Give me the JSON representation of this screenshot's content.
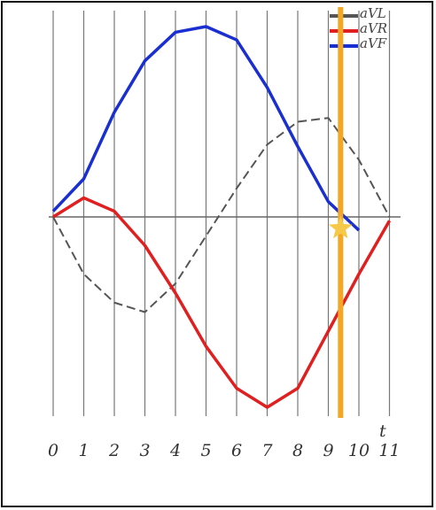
{
  "chart_data": {
    "type": "line",
    "x": [
      0,
      1,
      2,
      3,
      4,
      5,
      6,
      7,
      8,
      9,
      10,
      11
    ],
    "x_label": "t",
    "xlim": [
      0,
      11
    ],
    "xticks": [
      0,
      1,
      2,
      3,
      4,
      5,
      6,
      7,
      8,
      9,
      10,
      11
    ],
    "ylim": [
      -1.1,
      1.1
    ],
    "grid": true,
    "legend": "top-right",
    "series": [
      {
        "name": "aVL",
        "color": "#555555",
        "values": [
          0,
          -0.3,
          -0.45,
          -0.5,
          -0.35,
          -0.1,
          0.15,
          0.38,
          0.5,
          0.52,
          0.3,
          0
        ]
      },
      {
        "name": "aVR",
        "color": "#e02020",
        "values": [
          0,
          0.1,
          0.03,
          -0.15,
          -0.4,
          -0.68,
          -0.9,
          -1.0,
          -0.9,
          -0.6,
          -0.3,
          -0.02
        ]
      },
      {
        "name": "aVF",
        "color": "#1a2fd0",
        "values": [
          0.03,
          0.2,
          0.55,
          0.82,
          0.97,
          1.0,
          0.93,
          0.68,
          0.37,
          0.08,
          -0.07,
          null
        ]
      }
    ],
    "cursor": {
      "x": 9.4,
      "y": -0.06,
      "color": "#f5a623"
    }
  }
}
